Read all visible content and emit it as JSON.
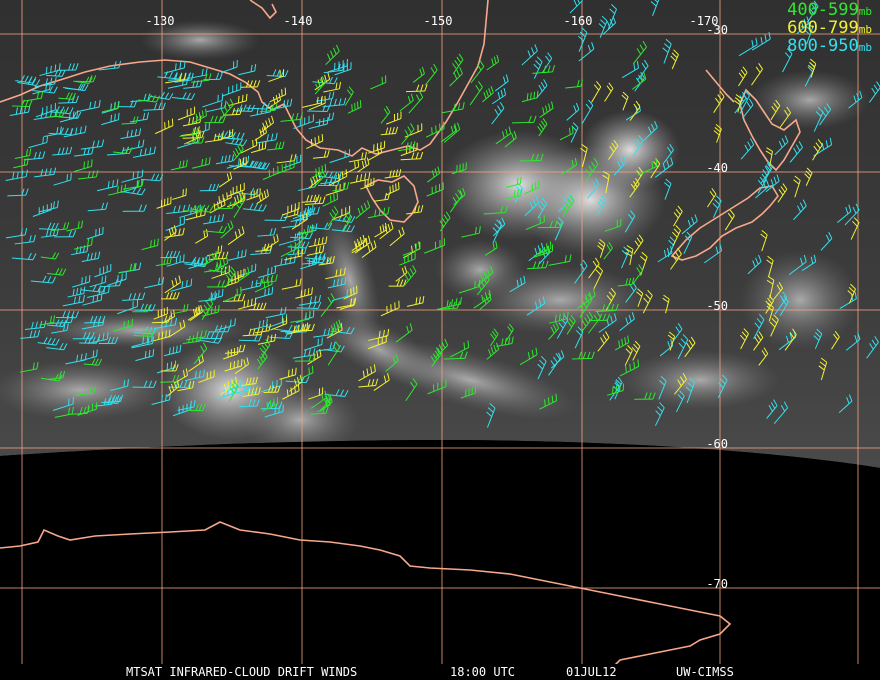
{
  "legend": [
    {
      "range": "400-599",
      "unit": "mb",
      "color": "#2ee82e"
    },
    {
      "range": "600-799",
      "unit": "mb",
      "color": "#f2f233"
    },
    {
      "range": "800-950",
      "unit": "mb",
      "color": "#33e0ee"
    }
  ],
  "longitude_labels": [
    "-130",
    "-140",
    "-150",
    "-160",
    "-170"
  ],
  "latitude_labels": [
    "-30",
    "-40",
    "-50",
    "-60",
    "-70"
  ],
  "footer": {
    "title": "MTSAT INFRARED-CLOUD DRIFT WINDS",
    "time": "18:00 UTC",
    "date": "01JUL12",
    "credit": "UW-CIMSS"
  },
  "colors": {
    "grid": "#f2a27e",
    "coast": "#f7a88a",
    "background": "#000000"
  }
}
